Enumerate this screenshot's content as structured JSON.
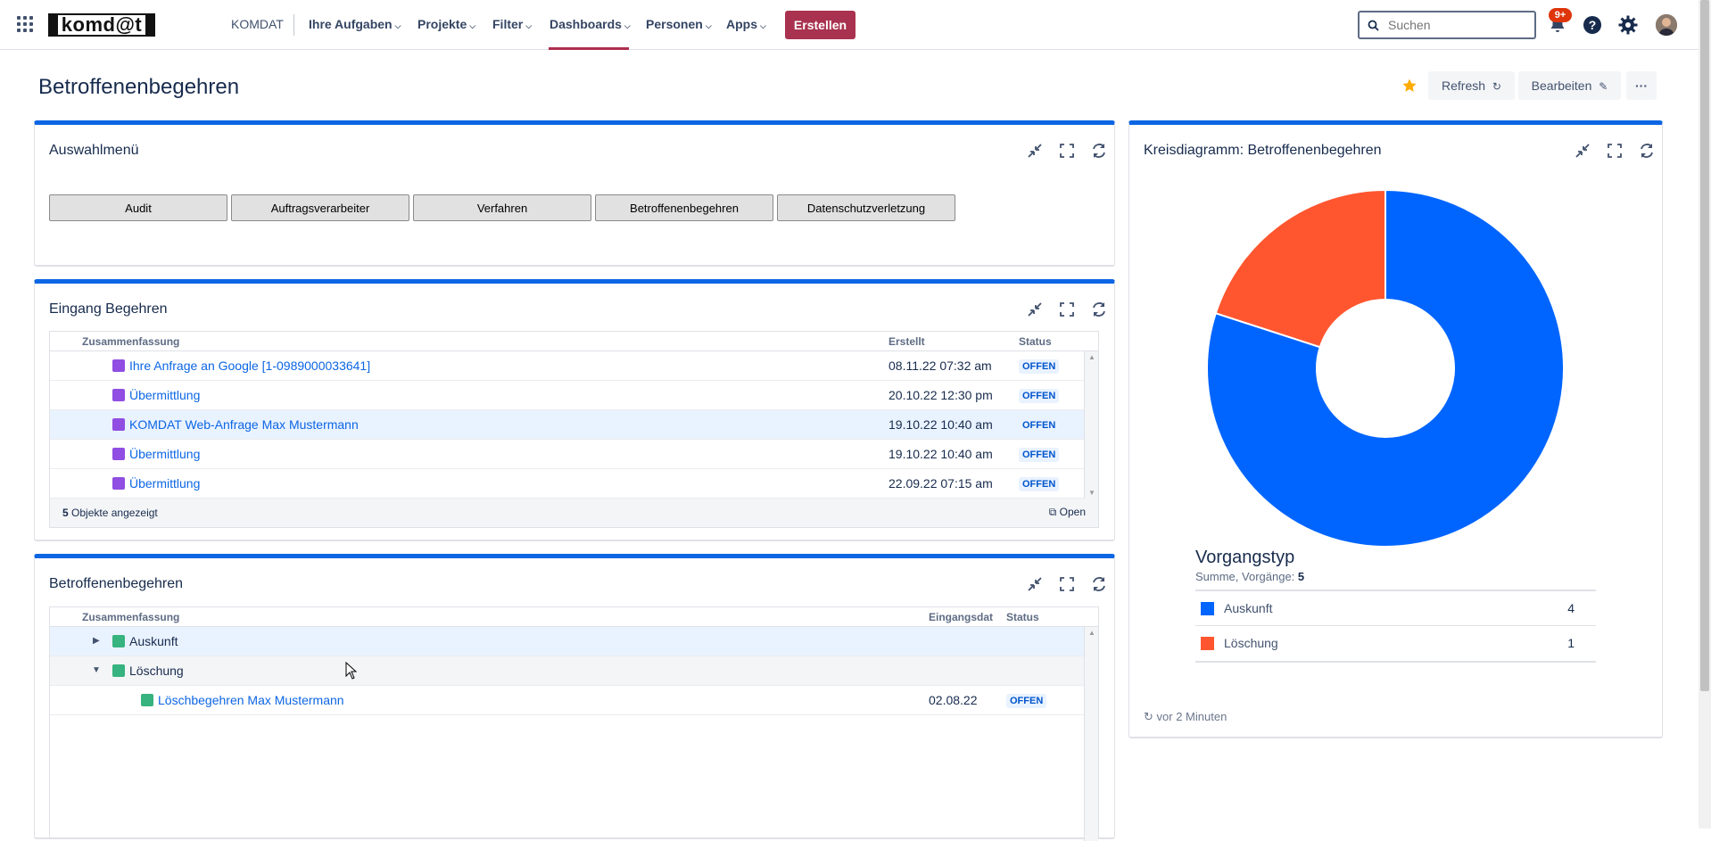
{
  "nav": {
    "logo": "komd@t",
    "home": "KOMDAT",
    "items": [
      {
        "label": "Ihre Aufgaben"
      },
      {
        "label": "Projekte"
      },
      {
        "label": "Filter"
      },
      {
        "label": "Dashboards"
      },
      {
        "label": "Personen"
      },
      {
        "label": "Apps"
      }
    ],
    "create_label": "Erstellen",
    "search_placeholder": "Suchen",
    "notification_badge": "9+",
    "accent_color": "#a8324f"
  },
  "page": {
    "title": "Betroffenenbegehren",
    "refresh_label": "Refresh",
    "edit_label": "Bearbeiten",
    "more_label": "···"
  },
  "menu_gadget": {
    "title": "Auswahlmenü",
    "buttons": [
      "Audit",
      "Auftragsverarbeiter",
      "Verfahren",
      "Betroffenenbegehren",
      "Datenschutzverletzung"
    ]
  },
  "incoming": {
    "title": "Eingang Begehren",
    "col_summary": "Zusammenfassung",
    "col_created": "Erstellt",
    "col_status": "Status",
    "rows": [
      {
        "summary": "Ihre Anfrage an Google [1-0989000033641]",
        "created": "08.11.22 07:32 am",
        "status": "OFFEN"
      },
      {
        "summary": "Übermittlung",
        "created": "20.10.22 12:30 pm",
        "status": "OFFEN"
      },
      {
        "summary": "KOMDAT Web-Anfrage Max Mustermann",
        "created": "19.10.22 10:40 am",
        "status": "OFFEN"
      },
      {
        "summary": "Übermittlung",
        "created": "19.10.22 10:40 am",
        "status": "OFFEN"
      },
      {
        "summary": "Übermittlung",
        "created": "22.09.22 07:15 am",
        "status": "OFFEN"
      }
    ],
    "footer_count": "5",
    "footer_text": "Objekte angezeigt",
    "open_label": "Open"
  },
  "grouped": {
    "title": "Betroffenenbegehren",
    "col_summary": "Zusammenfassung",
    "col_date": "Eingangsdat",
    "col_status": "Status",
    "groups": [
      {
        "label": "Auskunft"
      },
      {
        "label": "Löschung"
      }
    ],
    "child": {
      "summary": "Löschbegehren Max Mustermann",
      "date": "02.08.22",
      "status": "OFFEN"
    }
  },
  "pie": {
    "title": "Kreisdiagramm: Betroffenenbegehren",
    "legend_title": "Vorgangstyp",
    "sum_label": "Summe, Vorgänge:",
    "sum_value": "5",
    "updated": "vor 2 Minuten"
  },
  "chart_data": {
    "type": "pie",
    "categories": [
      "Auskunft",
      "Löschung"
    ],
    "values": [
      4,
      1
    ],
    "colors": [
      "#0065ff",
      "#ff5630"
    ],
    "donut": true
  }
}
